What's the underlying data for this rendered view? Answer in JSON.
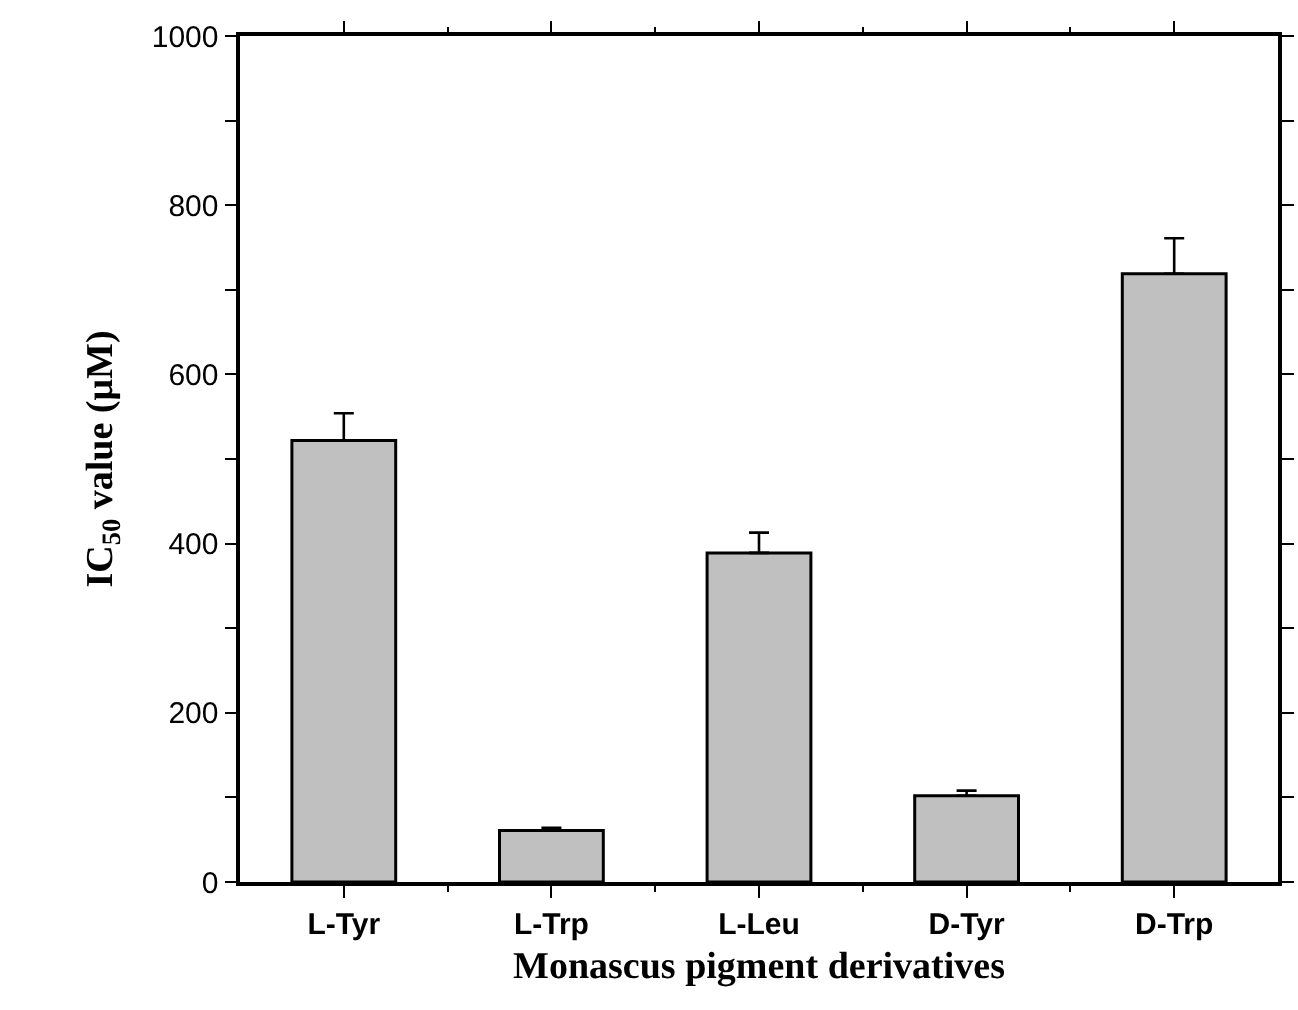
{
  "chart_data": {
    "type": "bar",
    "xlabel": "Monascus pigment derivatives",
    "ylabel": "IC$_{50}$ value (μM)",
    "categories": [
      "L-Tyr",
      "L-Trp",
      "L-Leu",
      "D-Tyr",
      "D-Trp"
    ],
    "values": [
      522,
      61,
      389,
      102,
      719
    ],
    "errors": [
      32,
      3,
      24,
      6,
      42
    ],
    "color": "#c0c0c0",
    "ylim": [
      0,
      1000
    ],
    "yticks": [
      0,
      {
        "value": 100,
        "label": null
      },
      200,
      {
        "value": 300,
        "label": null
      },
      400,
      {
        "value": 500,
        "label": null
      },
      600,
      {
        "value": 700,
        "label": null
      },
      800,
      {
        "value": 900,
        "label": null
      },
      1000
    ],
    "grid": false,
    "legend": false
  }
}
